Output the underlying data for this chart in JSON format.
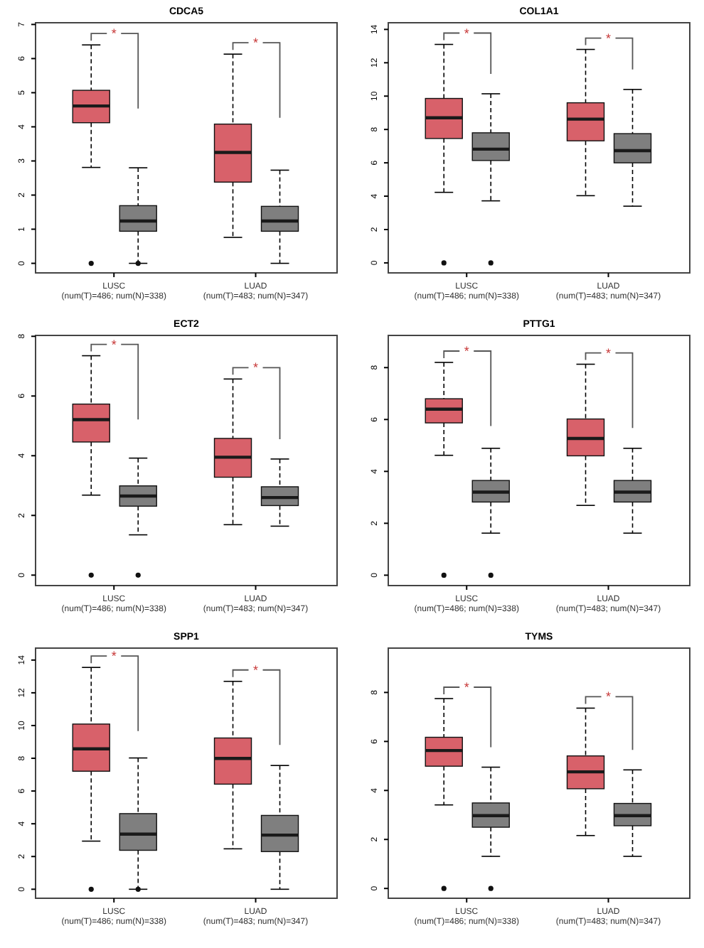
{
  "chart_data": [
    {
      "type": "box",
      "title": "CDCA5",
      "categories": [
        "LUSC\n(num(T)=486; num(N)=338)",
        "LUAD\n(num(T)=483; num(N)=347)"
      ],
      "ylim": [
        -0.28,
        7.05
      ],
      "yticks": [
        0,
        1,
        2,
        3,
        4,
        5,
        6,
        7
      ],
      "grid": false,
      "series": [
        {
          "color": "#d8616a",
          "boxes": [
            {
              "low": 2.81,
              "q1": 4.12,
              "median": 4.61,
              "q3": 5.07,
              "high": 6.4,
              "outliers": [
                0
              ]
            },
            {
              "low": 0.76,
              "q1": 2.38,
              "median": 3.25,
              "q3": 4.08,
              "high": 6.13
            }
          ]
        },
        {
          "color": "#7f7f7f",
          "boxes": [
            {
              "low": 0,
              "q1": 0.94,
              "median": 1.24,
              "q3": 1.69,
              "high": 2.8,
              "outliers": [
                0
              ]
            },
            {
              "low": 0,
              "q1": 0.94,
              "median": 1.24,
              "q3": 1.67,
              "high": 2.73
            }
          ]
        }
      ],
      "annotations": [
        "*",
        "*"
      ]
    },
    {
      "type": "box",
      "title": "COL1A1",
      "categories": [
        "LUSC\n(num(T)=486; num(N)=338)",
        "LUAD\n(num(T)=483; num(N)=347)"
      ],
      "ylim": [
        -0.6,
        14.4
      ],
      "yticks": [
        0,
        2,
        4,
        6,
        8,
        10,
        12,
        14
      ],
      "grid": false,
      "series": [
        {
          "color": "#d8616a",
          "boxes": [
            {
              "low": 4.23,
              "q1": 7.46,
              "median": 8.7,
              "q3": 9.86,
              "high": 13.1,
              "outliers": [
                0
              ]
            },
            {
              "low": 4.03,
              "q1": 7.32,
              "median": 8.62,
              "q3": 9.6,
              "high": 12.8
            }
          ]
        },
        {
          "color": "#7f7f7f",
          "boxes": [
            {
              "low": 3.72,
              "q1": 6.14,
              "median": 6.82,
              "q3": 7.8,
              "high": 10.14,
              "outliers": [
                0
              ]
            },
            {
              "low": 3.4,
              "q1": 6.0,
              "median": 6.73,
              "q3": 7.75,
              "high": 10.4
            }
          ]
        }
      ],
      "annotations": [
        "*",
        "*"
      ]
    },
    {
      "type": "box",
      "title": "ECT2",
      "categories": [
        "LUSC\n(num(T)=486; num(N)=338)",
        "LUAD\n(num(T)=483; num(N)=347)"
      ],
      "ylim": [
        -0.35,
        8.03
      ],
      "yticks": [
        0,
        2,
        4,
        6,
        8
      ],
      "grid": false,
      "series": [
        {
          "color": "#d8616a",
          "boxes": [
            {
              "low": 2.68,
              "q1": 4.46,
              "median": 5.21,
              "q3": 5.73,
              "high": 7.35,
              "outliers": [
                0
              ]
            },
            {
              "low": 1.69,
              "q1": 3.28,
              "median": 3.95,
              "q3": 4.58,
              "high": 6.57
            }
          ]
        },
        {
          "color": "#7f7f7f",
          "boxes": [
            {
              "low": 1.35,
              "q1": 2.31,
              "median": 2.65,
              "q3": 2.99,
              "high": 3.92,
              "outliers": [
                0
              ]
            },
            {
              "low": 1.64,
              "q1": 2.33,
              "median": 2.6,
              "q3": 2.96,
              "high": 3.89
            }
          ]
        }
      ],
      "annotations": [
        "*",
        "*"
      ]
    },
    {
      "type": "box",
      "title": "PTTG1",
      "categories": [
        "LUSC\n(num(T)=486; num(N)=338)",
        "LUAD\n(num(T)=483; num(N)=347)"
      ],
      "ylim": [
        -0.4,
        9.24
      ],
      "yticks": [
        0,
        2,
        4,
        6,
        8
      ],
      "grid": false,
      "series": [
        {
          "color": "#d8616a",
          "boxes": [
            {
              "low": 4.62,
              "q1": 5.87,
              "median": 6.4,
              "q3": 6.8,
              "high": 8.2,
              "outliers": [
                0
              ]
            },
            {
              "low": 2.69,
              "q1": 4.6,
              "median": 5.27,
              "q3": 6.02,
              "high": 8.13
            }
          ]
        },
        {
          "color": "#7f7f7f",
          "boxes": [
            {
              "low": 1.62,
              "q1": 2.82,
              "median": 3.2,
              "q3": 3.65,
              "high": 4.89,
              "outliers": [
                0
              ]
            },
            {
              "low": 1.62,
              "q1": 2.82,
              "median": 3.2,
              "q3": 3.65,
              "high": 4.89
            }
          ]
        }
      ],
      "annotations": [
        "*",
        "*"
      ]
    },
    {
      "type": "box",
      "title": "SPP1",
      "categories": [
        "LUSC\n(num(T)=486; num(N)=338)",
        "LUAD\n(num(T)=483; num(N)=347)"
      ],
      "ylim": [
        -0.55,
        14.73
      ],
      "yticks": [
        0,
        2,
        4,
        6,
        8,
        10,
        12,
        14
      ],
      "grid": false,
      "series": [
        {
          "color": "#d8616a",
          "boxes": [
            {
              "low": 2.94,
              "q1": 7.21,
              "median": 8.58,
              "q3": 10.09,
              "high": 13.55,
              "outliers": [
                0
              ]
            },
            {
              "low": 2.47,
              "q1": 6.42,
              "median": 7.99,
              "q3": 9.24,
              "high": 12.7
            }
          ]
        },
        {
          "color": "#7f7f7f",
          "boxes": [
            {
              "low": 0,
              "q1": 2.38,
              "median": 3.37,
              "q3": 4.62,
              "high": 8.02,
              "outliers": [
                0
              ]
            },
            {
              "low": 0,
              "q1": 2.3,
              "median": 3.31,
              "q3": 4.51,
              "high": 7.56
            }
          ]
        }
      ],
      "annotations": [
        "*",
        "*"
      ]
    },
    {
      "type": "box",
      "title": "TYMS",
      "categories": [
        "LUSC\n(num(T)=486; num(N)=338)",
        "LUAD\n(num(T)=483; num(N)=347)"
      ],
      "ylim": [
        -0.4,
        9.81
      ],
      "yticks": [
        0,
        2,
        4,
        6,
        8
      ],
      "grid": false,
      "series": [
        {
          "color": "#d8616a",
          "boxes": [
            {
              "low": 3.41,
              "q1": 4.99,
              "median": 5.63,
              "q3": 6.17,
              "high": 7.75,
              "outliers": [
                0
              ]
            },
            {
              "low": 2.16,
              "q1": 4.07,
              "median": 4.76,
              "q3": 5.41,
              "high": 7.36
            }
          ]
        },
        {
          "color": "#7f7f7f",
          "boxes": [
            {
              "low": 1.31,
              "q1": 2.5,
              "median": 2.97,
              "q3": 3.49,
              "high": 4.95,
              "outliers": [
                0
              ]
            },
            {
              "low": 1.31,
              "q1": 2.56,
              "median": 2.97,
              "q3": 3.47,
              "high": 4.84
            }
          ]
        }
      ],
      "annotations": [
        "*",
        "*"
      ]
    }
  ]
}
